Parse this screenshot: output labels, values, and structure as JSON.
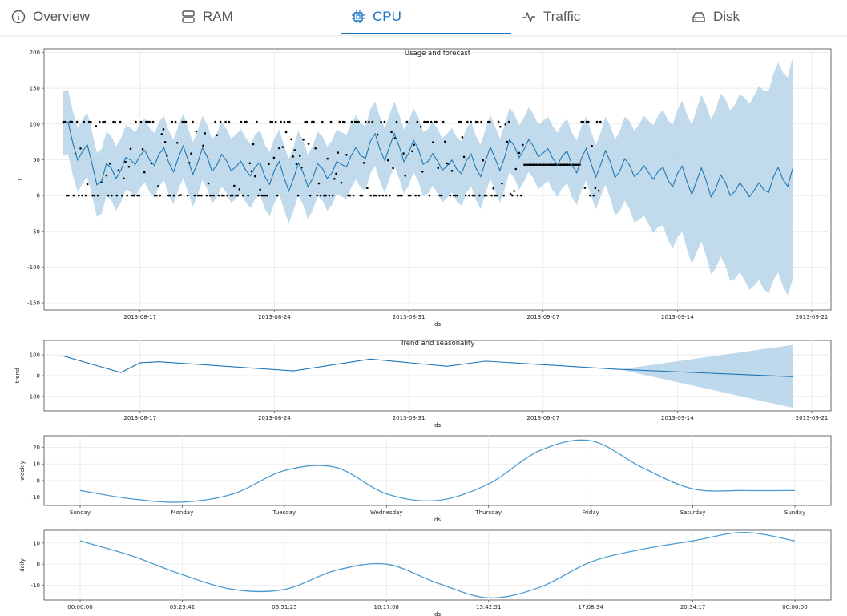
{
  "tabs": [
    {
      "label": "Overview",
      "icon": "info-icon",
      "active": false
    },
    {
      "label": "RAM",
      "icon": "server-icon",
      "active": false
    },
    {
      "label": "CPU",
      "icon": "cpu-icon",
      "active": true
    },
    {
      "label": "Traffic",
      "icon": "activity-icon",
      "active": false
    },
    {
      "label": "Disk",
      "icon": "hard-drive-icon",
      "active": false
    }
  ],
  "colors": {
    "accent": "#1a73c7",
    "forecast_line": "#1f77b4",
    "uncertainty": "#aecfe6",
    "observed": "#000000"
  },
  "chart_data": [
    {
      "type": "line",
      "title": "Usage and forecast",
      "xlabel": "ds",
      "ylabel": "y",
      "ylim": [
        -160,
        205
      ],
      "yticks": [
        -150,
        -100,
        -50,
        0,
        50,
        100,
        150,
        200
      ],
      "xticks": [
        "2013-08-17",
        "2013-08-24",
        "2013-08-31",
        "2013-09-07",
        "2013-09-14",
        "2013-09-21"
      ],
      "x_range": [
        "2013-08-12",
        "2013-09-22"
      ],
      "forecast_end": "2013-09-20",
      "observed_end": "2013-09-10",
      "grid": true,
      "series": [
        {
          "role": "forecast-line",
          "x": [
            "2013-08-13",
            "2013-08-15",
            "2013-08-17",
            "2013-08-19",
            "2013-08-21",
            "2013-08-23",
            "2013-08-25",
            "2013-08-27",
            "2013-08-29",
            "2013-08-31",
            "2013-09-02",
            "2013-09-04",
            "2013-09-06",
            "2013-09-08",
            "2013-09-10",
            "2013-09-12",
            "2013-09-14",
            "2013-09-16",
            "2013-09-18",
            "2013-09-20"
          ],
          "y": [
            95,
            25,
            55,
            50,
            48,
            35,
            25,
            35,
            70,
            65,
            40,
            45,
            70,
            50,
            45,
            35,
            25,
            15,
            5,
            35
          ]
        },
        {
          "role": "observed-points",
          "levels": [
            0,
            43,
            103
          ]
        }
      ]
    },
    {
      "type": "area",
      "title": "Trend and seasonality",
      "xlabel": "ds",
      "ylabel": "trend",
      "ylim": [
        -170,
        170
      ],
      "yticks": [
        -100,
        0,
        100
      ],
      "xticks": [
        "2013-08-17",
        "2013-08-24",
        "2013-08-31",
        "2013-09-07",
        "2013-09-14",
        "2013-09-21"
      ],
      "grid": true,
      "series": [
        {
          "role": "trend",
          "x": [
            "2013-08-13",
            "2013-08-16",
            "2013-08-17",
            "2013-08-18",
            "2013-08-25",
            "2013-08-29",
            "2013-09-02",
            "2013-09-04",
            "2013-09-11",
            "2013-09-20"
          ],
          "y": [
            95,
            15,
            62,
            67,
            23,
            80,
            45,
            70,
            30,
            -5
          ]
        },
        {
          "role": "trend-uncertainty",
          "x": [
            "2013-09-11",
            "2013-09-20"
          ],
          "upper": [
            30,
            148
          ],
          "lower": [
            30,
            -155
          ]
        }
      ]
    },
    {
      "type": "line",
      "xlabel": "ds",
      "ylabel": "weekly",
      "ylim": [
        -15,
        27
      ],
      "yticks": [
        -10,
        0,
        10,
        20
      ],
      "categories": [
        "Sunday",
        "Monday",
        "Tuesday",
        "Wednesday",
        "Thursday",
        "Friday",
        "Saturday",
        "Sunday"
      ],
      "grid": true,
      "series": [
        {
          "x": [
            0,
            0.5,
            1,
            1.5,
            2,
            2.5,
            3,
            3.5,
            4,
            4.5,
            5,
            5.5,
            6,
            6.5,
            7
          ],
          "y": [
            -6,
            -11,
            -13,
            -8,
            6,
            8,
            -8,
            -12,
            -2,
            18,
            24,
            8,
            -5,
            -6,
            -6
          ]
        }
      ]
    },
    {
      "type": "line",
      "xlabel": "ds",
      "ylabel": "daily",
      "ylim": [
        -17,
        16
      ],
      "yticks": [
        -10,
        0,
        10
      ],
      "xticks": [
        "00:00:00",
        "03:25:42",
        "06:51:25",
        "10:17:08",
        "13:42:51",
        "17:08:34",
        "20:34:17",
        "00:00:00"
      ],
      "grid": true,
      "series": [
        {
          "x": [
            0,
            1,
            2,
            3,
            4,
            5,
            6,
            7,
            8,
            9,
            10,
            11,
            12,
            13,
            14
          ],
          "y": [
            11,
            4,
            -5,
            -12,
            -12,
            -3,
            0,
            -9,
            -16,
            -11,
            1,
            7,
            11,
            15,
            11
          ]
        }
      ]
    }
  ]
}
